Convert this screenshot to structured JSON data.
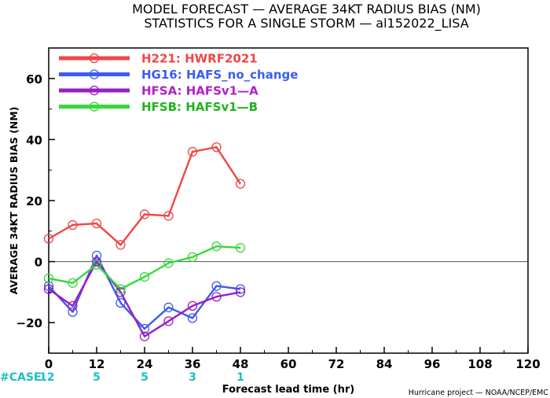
{
  "chart_data": {
    "type": "line",
    "title_line1": "MODEL FORECAST — AVERAGE 34KT RADIUS BIAS (NM)",
    "title_line2": "STATISTICS FOR A SINGLE STORM — al152022_LISA",
    "ylabel": "AVERAGE 34KT RADIUS BIAS (NM)",
    "xlabel": "Forecast lead time (hr)",
    "credit": "Hurricane project — NOAA/NCEP/EMC",
    "xlim": [
      0,
      120
    ],
    "ylim": [
      -30,
      70
    ],
    "xticks": [
      "0",
      "12",
      "24",
      "36",
      "48",
      "60",
      "72",
      "84",
      "96",
      "108",
      "120"
    ],
    "yticks": [
      "−20",
      "0",
      "20",
      "40",
      "60"
    ],
    "cases_label": "#CASE",
    "cases": [
      {
        "x": 0,
        "label": "12"
      },
      {
        "x": 12,
        "label": "5"
      },
      {
        "x": 24,
        "label": "5"
      },
      {
        "x": 36,
        "label": "3"
      },
      {
        "x": 48,
        "label": "1"
      }
    ],
    "x": [
      0,
      6,
      12,
      18,
      24,
      30,
      36,
      42,
      48
    ],
    "series": [
      {
        "name": "H221",
        "desc": "HWRF2021",
        "color": "#f04646",
        "text_color": "#f04646",
        "values": [
          7.5,
          12,
          12.5,
          5.5,
          15.5,
          15,
          36,
          37.5,
          25.5
        ]
      },
      {
        "name": "HG16",
        "desc": "HAFS_no_change",
        "color": "#3c5cf0",
        "text_color": "#3c5cf0",
        "values": [
          -8,
          -16.5,
          2,
          -13.5,
          -22,
          -15,
          -18.5,
          -8,
          -9
        ]
      },
      {
        "name": "HFSA",
        "desc": "HAFSv1—A",
        "color": "#9b1fbf",
        "text_color": "#b01fc8",
        "values": [
          -9,
          -14.5,
          0,
          -10,
          -24.5,
          -19.5,
          -14.5,
          -11.5,
          -10
        ]
      },
      {
        "name": "HFSB",
        "desc": "HAFSv1—B",
        "color": "#36d83a",
        "text_color": "#1eb41e",
        "values": [
          -5.5,
          -7,
          -1,
          -9,
          -5,
          -0.5,
          1.5,
          5,
          4.5
        ]
      }
    ]
  }
}
